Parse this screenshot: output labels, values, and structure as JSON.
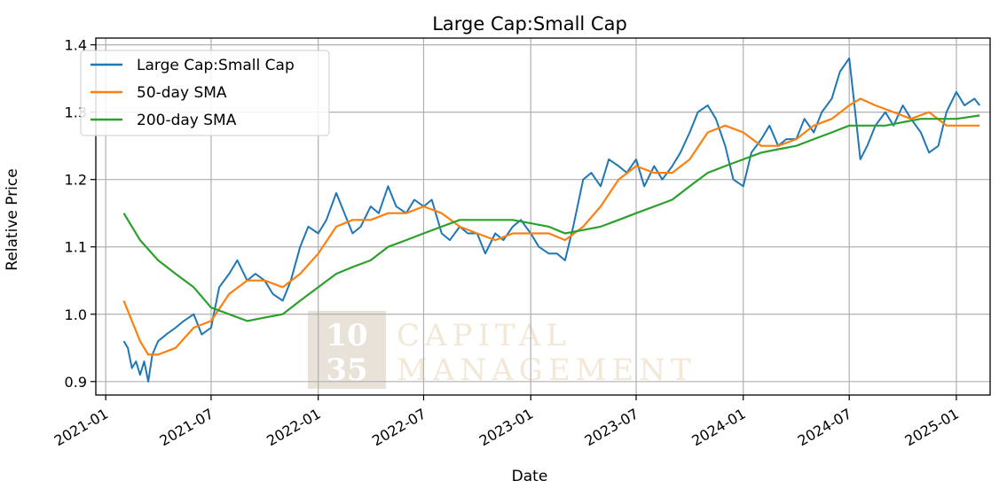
{
  "chart_data": {
    "type": "line",
    "title": "Large Cap:Small Cap",
    "xlabel": "Date",
    "ylabel": "Relative Price",
    "xlim": [
      "2020-12-15",
      "2025-02-28"
    ],
    "ylim": [
      0.88,
      1.41
    ],
    "grid": true,
    "legend_position": "top-left",
    "x_ticks": [
      "2021-01",
      "2021-07",
      "2022-01",
      "2022-07",
      "2023-01",
      "2023-07",
      "2024-01",
      "2024-07",
      "2025-01"
    ],
    "y_ticks": [
      0.9,
      1.0,
      1.1,
      1.2,
      1.3,
      1.4
    ],
    "y_tick_labels": [
      "0.9",
      "1.0",
      "1.1",
      "1.2",
      "1.3",
      "1.4"
    ],
    "watermark": {
      "logo_digits": [
        "10",
        "35"
      ],
      "lines": [
        "CAPITAL",
        "MANAGEMENT"
      ]
    },
    "series": [
      {
        "name": "Large Cap:Small Cap",
        "color": "#1f77b4",
        "points": [
          [
            "2021-02-01",
            0.96
          ],
          [
            "2021-02-08",
            0.95
          ],
          [
            "2021-02-15",
            0.92
          ],
          [
            "2021-02-22",
            0.93
          ],
          [
            "2021-03-01",
            0.91
          ],
          [
            "2021-03-08",
            0.93
          ],
          [
            "2021-03-15",
            0.9
          ],
          [
            "2021-03-22",
            0.94
          ],
          [
            "2021-04-01",
            0.96
          ],
          [
            "2021-04-15",
            0.97
          ],
          [
            "2021-05-01",
            0.98
          ],
          [
            "2021-05-15",
            0.99
          ],
          [
            "2021-06-01",
            1.0
          ],
          [
            "2021-06-15",
            0.97
          ],
          [
            "2021-07-01",
            0.98
          ],
          [
            "2021-07-15",
            1.04
          ],
          [
            "2021-08-01",
            1.06
          ],
          [
            "2021-08-15",
            1.08
          ],
          [
            "2021-09-01",
            1.05
          ],
          [
            "2021-09-15",
            1.06
          ],
          [
            "2021-10-01",
            1.05
          ],
          [
            "2021-10-15",
            1.03
          ],
          [
            "2021-11-01",
            1.02
          ],
          [
            "2021-11-15",
            1.05
          ],
          [
            "2021-12-01",
            1.1
          ],
          [
            "2021-12-15",
            1.13
          ],
          [
            "2022-01-01",
            1.12
          ],
          [
            "2022-01-15",
            1.14
          ],
          [
            "2022-02-01",
            1.18
          ],
          [
            "2022-02-15",
            1.15
          ],
          [
            "2022-03-01",
            1.12
          ],
          [
            "2022-03-15",
            1.13
          ],
          [
            "2022-04-01",
            1.16
          ],
          [
            "2022-04-15",
            1.15
          ],
          [
            "2022-05-01",
            1.19
          ],
          [
            "2022-05-15",
            1.16
          ],
          [
            "2022-06-01",
            1.15
          ],
          [
            "2022-06-15",
            1.17
          ],
          [
            "2022-07-01",
            1.16
          ],
          [
            "2022-07-15",
            1.17
          ],
          [
            "2022-08-01",
            1.12
          ],
          [
            "2022-08-15",
            1.11
          ],
          [
            "2022-09-01",
            1.13
          ],
          [
            "2022-09-15",
            1.12
          ],
          [
            "2022-10-01",
            1.12
          ],
          [
            "2022-10-15",
            1.09
          ],
          [
            "2022-11-01",
            1.12
          ],
          [
            "2022-11-15",
            1.11
          ],
          [
            "2022-12-01",
            1.13
          ],
          [
            "2022-12-15",
            1.14
          ],
          [
            "2023-01-01",
            1.12
          ],
          [
            "2023-01-15",
            1.1
          ],
          [
            "2023-02-01",
            1.09
          ],
          [
            "2023-02-15",
            1.09
          ],
          [
            "2023-03-01",
            1.08
          ],
          [
            "2023-03-15",
            1.13
          ],
          [
            "2023-04-01",
            1.2
          ],
          [
            "2023-04-15",
            1.21
          ],
          [
            "2023-05-01",
            1.19
          ],
          [
            "2023-05-15",
            1.23
          ],
          [
            "2023-06-01",
            1.22
          ],
          [
            "2023-06-15",
            1.21
          ],
          [
            "2023-07-01",
            1.23
          ],
          [
            "2023-07-15",
            1.19
          ],
          [
            "2023-08-01",
            1.22
          ],
          [
            "2023-08-15",
            1.2
          ],
          [
            "2023-09-01",
            1.22
          ],
          [
            "2023-09-15",
            1.24
          ],
          [
            "2023-10-01",
            1.27
          ],
          [
            "2023-10-15",
            1.3
          ],
          [
            "2023-11-01",
            1.31
          ],
          [
            "2023-11-15",
            1.29
          ],
          [
            "2023-12-01",
            1.25
          ],
          [
            "2023-12-15",
            1.2
          ],
          [
            "2024-01-01",
            1.19
          ],
          [
            "2024-01-15",
            1.24
          ],
          [
            "2024-02-01",
            1.26
          ],
          [
            "2024-02-15",
            1.28
          ],
          [
            "2024-03-01",
            1.25
          ],
          [
            "2024-03-15",
            1.26
          ],
          [
            "2024-04-01",
            1.26
          ],
          [
            "2024-04-15",
            1.29
          ],
          [
            "2024-05-01",
            1.27
          ],
          [
            "2024-05-15",
            1.3
          ],
          [
            "2024-06-01",
            1.32
          ],
          [
            "2024-06-15",
            1.36
          ],
          [
            "2024-07-01",
            1.38
          ],
          [
            "2024-07-10",
            1.31
          ],
          [
            "2024-07-20",
            1.23
          ],
          [
            "2024-08-01",
            1.25
          ],
          [
            "2024-08-15",
            1.28
          ],
          [
            "2024-09-01",
            1.3
          ],
          [
            "2024-09-15",
            1.28
          ],
          [
            "2024-10-01",
            1.31
          ],
          [
            "2024-10-15",
            1.29
          ],
          [
            "2024-11-01",
            1.27
          ],
          [
            "2024-11-15",
            1.24
          ],
          [
            "2024-12-01",
            1.25
          ],
          [
            "2024-12-15",
            1.3
          ],
          [
            "2025-01-01",
            1.33
          ],
          [
            "2025-01-15",
            1.31
          ],
          [
            "2025-02-01",
            1.32
          ],
          [
            "2025-02-10",
            1.31
          ]
        ]
      },
      {
        "name": "50-day SMA",
        "color": "#ff7f0e",
        "points": [
          [
            "2021-02-01",
            1.02
          ],
          [
            "2021-02-15",
            0.99
          ],
          [
            "2021-03-01",
            0.96
          ],
          [
            "2021-03-15",
            0.94
          ],
          [
            "2021-04-01",
            0.94
          ],
          [
            "2021-05-01",
            0.95
          ],
          [
            "2021-06-01",
            0.98
          ],
          [
            "2021-07-01",
            0.99
          ],
          [
            "2021-08-01",
            1.03
          ],
          [
            "2021-09-01",
            1.05
          ],
          [
            "2021-10-01",
            1.05
          ],
          [
            "2021-11-01",
            1.04
          ],
          [
            "2021-12-01",
            1.06
          ],
          [
            "2022-01-01",
            1.09
          ],
          [
            "2022-02-01",
            1.13
          ],
          [
            "2022-03-01",
            1.14
          ],
          [
            "2022-04-01",
            1.14
          ],
          [
            "2022-05-01",
            1.15
          ],
          [
            "2022-06-01",
            1.15
          ],
          [
            "2022-07-01",
            1.16
          ],
          [
            "2022-08-01",
            1.15
          ],
          [
            "2022-09-01",
            1.13
          ],
          [
            "2022-10-01",
            1.12
          ],
          [
            "2022-11-01",
            1.11
          ],
          [
            "2022-12-01",
            1.12
          ],
          [
            "2023-01-01",
            1.12
          ],
          [
            "2023-02-01",
            1.12
          ],
          [
            "2023-03-01",
            1.11
          ],
          [
            "2023-04-01",
            1.13
          ],
          [
            "2023-05-01",
            1.16
          ],
          [
            "2023-06-01",
            1.2
          ],
          [
            "2023-07-01",
            1.22
          ],
          [
            "2023-08-01",
            1.21
          ],
          [
            "2023-09-01",
            1.21
          ],
          [
            "2023-10-01",
            1.23
          ],
          [
            "2023-11-01",
            1.27
          ],
          [
            "2023-12-01",
            1.28
          ],
          [
            "2024-01-01",
            1.27
          ],
          [
            "2024-02-01",
            1.25
          ],
          [
            "2024-03-01",
            1.25
          ],
          [
            "2024-04-01",
            1.26
          ],
          [
            "2024-05-01",
            1.28
          ],
          [
            "2024-06-01",
            1.29
          ],
          [
            "2024-07-01",
            1.31
          ],
          [
            "2024-07-20",
            1.32
          ],
          [
            "2024-08-15",
            1.31
          ],
          [
            "2024-09-15",
            1.3
          ],
          [
            "2024-10-15",
            1.29
          ],
          [
            "2024-11-15",
            1.3
          ],
          [
            "2024-12-15",
            1.28
          ],
          [
            "2025-01-15",
            1.28
          ],
          [
            "2025-02-10",
            1.28
          ]
        ]
      },
      {
        "name": "200-day SMA",
        "color": "#2ca02c",
        "points": [
          [
            "2021-02-01",
            1.15
          ],
          [
            "2021-03-01",
            1.11
          ],
          [
            "2021-04-01",
            1.08
          ],
          [
            "2021-05-01",
            1.06
          ],
          [
            "2021-06-01",
            1.04
          ],
          [
            "2021-07-01",
            1.01
          ],
          [
            "2021-08-01",
            1.0
          ],
          [
            "2021-09-01",
            0.99
          ],
          [
            "2021-10-01",
            0.995
          ],
          [
            "2021-11-01",
            1.0
          ],
          [
            "2021-12-01",
            1.02
          ],
          [
            "2022-01-01",
            1.04
          ],
          [
            "2022-02-01",
            1.06
          ],
          [
            "2022-03-01",
            1.07
          ],
          [
            "2022-04-01",
            1.08
          ],
          [
            "2022-05-01",
            1.1
          ],
          [
            "2022-06-01",
            1.11
          ],
          [
            "2022-07-01",
            1.12
          ],
          [
            "2022-08-01",
            1.13
          ],
          [
            "2022-09-01",
            1.14
          ],
          [
            "2022-10-01",
            1.14
          ],
          [
            "2022-11-01",
            1.14
          ],
          [
            "2022-12-01",
            1.14
          ],
          [
            "2023-01-01",
            1.135
          ],
          [
            "2023-02-01",
            1.13
          ],
          [
            "2023-03-01",
            1.12
          ],
          [
            "2023-04-01",
            1.125
          ],
          [
            "2023-05-01",
            1.13
          ],
          [
            "2023-06-01",
            1.14
          ],
          [
            "2023-07-01",
            1.15
          ],
          [
            "2023-08-01",
            1.16
          ],
          [
            "2023-09-01",
            1.17
          ],
          [
            "2023-10-01",
            1.19
          ],
          [
            "2023-11-01",
            1.21
          ],
          [
            "2023-12-01",
            1.22
          ],
          [
            "2024-01-01",
            1.23
          ],
          [
            "2024-02-01",
            1.24
          ],
          [
            "2024-03-01",
            1.245
          ],
          [
            "2024-04-01",
            1.25
          ],
          [
            "2024-05-01",
            1.26
          ],
          [
            "2024-06-01",
            1.27
          ],
          [
            "2024-07-01",
            1.28
          ],
          [
            "2024-08-01",
            1.28
          ],
          [
            "2024-09-01",
            1.28
          ],
          [
            "2024-10-01",
            1.285
          ],
          [
            "2024-11-01",
            1.29
          ],
          [
            "2024-12-01",
            1.29
          ],
          [
            "2025-01-01",
            1.29
          ],
          [
            "2025-02-10",
            1.295
          ]
        ]
      }
    ]
  }
}
